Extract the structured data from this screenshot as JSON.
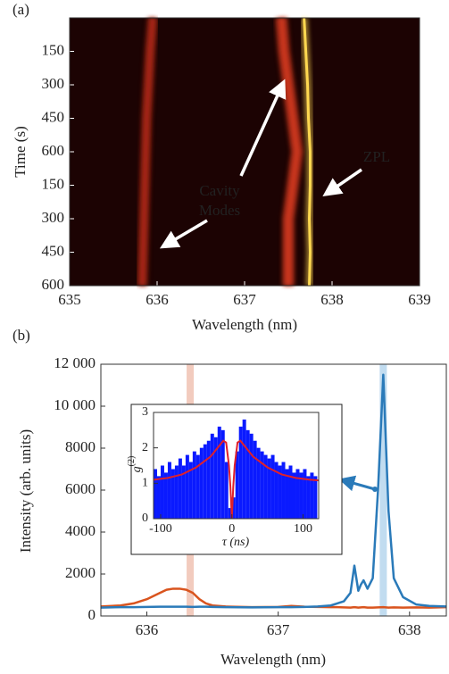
{
  "chart_data": [
    {
      "type": "heatmap",
      "panel": "(a)",
      "xlabel": "Wavelength (nm)",
      "ylabel": "Time (s)",
      "xlim": [
        635,
        639
      ],
      "xticks": [
        635,
        636,
        637,
        638,
        639
      ],
      "ylim": [
        0,
        1200
      ],
      "y_inverted": true,
      "yticks": [
        150,
        300,
        450,
        600,
        {
          "value": 750,
          "label": "150"
        },
        {
          "value": 900,
          "label": "300"
        },
        {
          "value": 1050,
          "label": "450"
        },
        {
          "value": 1200,
          "label": "600"
        }
      ],
      "background": "#1c0303",
      "rows": [
        0,
        150,
        300,
        450,
        600,
        750,
        900,
        1050,
        1200
      ],
      "streaks": [
        {
          "color": "#a82812",
          "values": [
            635.95,
            635.92,
            635.9,
            635.88,
            635.87,
            635.86,
            635.85,
            635.84,
            635.83
          ]
        },
        {
          "color": "#c8361a",
          "values": [
            637.42,
            637.45,
            637.5,
            637.55,
            637.6,
            637.55,
            637.5,
            637.5,
            637.5
          ]
        },
        {
          "color": "#ffd850",
          "values": [
            637.68,
            637.7,
            637.72,
            637.73,
            637.75,
            637.75,
            637.74,
            637.75,
            637.74
          ]
        }
      ],
      "annotations": [
        "Cavity",
        "Modes",
        "ZPL"
      ]
    },
    {
      "type": "line",
      "panel": "(b)",
      "xlabel": "Wavelength (nm)",
      "ylabel": "Intensity (arb. units)",
      "xlim": [
        635.65,
        638.28
      ],
      "xticks": [
        636,
        637,
        638
      ],
      "ylim": [
        0,
        12000
      ],
      "yticks": [
        0,
        2000,
        4000,
        6000,
        8000,
        {
          "value": 10000,
          "label": "10 000"
        },
        {
          "value": 12000,
          "label": "12 000"
        }
      ],
      "x": [
        635.65,
        635.8,
        635.9,
        636.0,
        636.1,
        636.15,
        636.2,
        636.25,
        636.3,
        636.35,
        636.4,
        636.45,
        636.5,
        636.6,
        636.8,
        637.0,
        637.1,
        637.2,
        637.3,
        637.4,
        637.45,
        637.5,
        637.55,
        637.58,
        637.61,
        637.63,
        637.65,
        637.68,
        637.72,
        637.76,
        637.8,
        637.84,
        637.88,
        637.95,
        638.05,
        638.15,
        638.28
      ],
      "series": [
        {
          "color": "#2a7ab9",
          "values": [
            400,
            420,
            420,
            430,
            440,
            440,
            440,
            440,
            440,
            430,
            440,
            440,
            430,
            420,
            410,
            420,
            420,
            430,
            450,
            500,
            600,
            700,
            1100,
            2400,
            1200,
            1500,
            1700,
            1300,
            1800,
            6000,
            11500,
            5000,
            1800,
            900,
            550,
            480,
            450
          ]
        },
        {
          "color": "#d9541e",
          "values": [
            450,
            500,
            600,
            800,
            1100,
            1250,
            1300,
            1300,
            1250,
            1100,
            800,
            600,
            500,
            450,
            420,
            430,
            480,
            440,
            430,
            420,
            420,
            410,
            400,
            420,
            400,
            410,
            420,
            400,
            400,
            410,
            420,
            400,
            410,
            400,
            410,
            400,
            420
          ]
        }
      ],
      "highlights": [
        {
          "x": 636.33,
          "color": "#e8a088"
        },
        {
          "x": 637.8,
          "color": "#8ec0e4"
        }
      ]
    },
    {
      "type": "histogram",
      "xlabel": "τ (ns)",
      "ylabel": "g",
      "ylabel_sup": "(2)",
      "xlim": [
        -110,
        122
      ],
      "xticks": [
        -100,
        0,
        100
      ],
      "ylim": [
        0,
        3
      ],
      "yticks": [
        0,
        1,
        2,
        3
      ],
      "color": "#0a1aff",
      "bins": [
        -110,
        -105,
        -100,
        -95,
        -90,
        -85,
        -80,
        -75,
        -70,
        -65,
        -60,
        -55,
        -50,
        -45,
        -40,
        -35,
        -30,
        -25,
        -20,
        -15,
        -10,
        -5,
        0,
        5,
        10,
        15,
        20,
        25,
        30,
        35,
        40,
        45,
        50,
        55,
        60,
        65,
        70,
        75,
        80,
        85,
        90,
        95,
        100,
        105,
        110,
        115,
        120
      ],
      "values": [
        1.4,
        1.2,
        1.5,
        1.3,
        1.6,
        1.4,
        1.5,
        1.7,
        1.5,
        1.8,
        1.6,
        1.9,
        1.8,
        2.0,
        2.1,
        2.2,
        2.4,
        2.3,
        2.6,
        2.5,
        1.6,
        0.3,
        0.6,
        1.9,
        2.6,
        2.8,
        2.5,
        2.4,
        2.2,
        2.0,
        1.9,
        1.8,
        1.7,
        1.8,
        1.6,
        1.5,
        1.6,
        1.4,
        1.5,
        1.3,
        1.4,
        1.3,
        1.4,
        1.2,
        1.3,
        1.2
      ],
      "fit": {
        "color": "#e0202a",
        "x": [
          -110,
          -90,
          -70,
          -50,
          -30,
          -20,
          -12,
          -8,
          -4,
          -2,
          0,
          2,
          4,
          8,
          12,
          20,
          30,
          50,
          70,
          90,
          110,
          122
        ],
        "values": [
          1.1,
          1.15,
          1.25,
          1.45,
          1.75,
          2.0,
          2.2,
          2.15,
          1.5,
          0.9,
          0,
          0.9,
          1.5,
          2.15,
          2.2,
          2.0,
          1.75,
          1.45,
          1.25,
          1.15,
          1.1,
          1.08
        ]
      }
    }
  ]
}
